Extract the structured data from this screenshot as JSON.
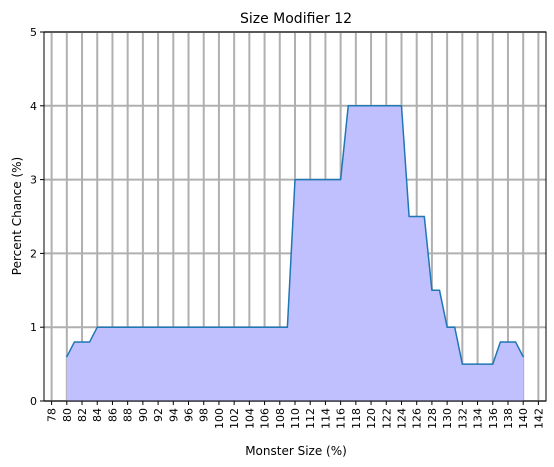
{
  "chart_data": {
    "type": "area",
    "title": "Size Modifier 12",
    "xlabel": "Monster Size (%)",
    "ylabel": "Percent Chance (%)",
    "xlim": [
      77,
      143
    ],
    "ylim": [
      0,
      5
    ],
    "grid": true,
    "x_ticks": [
      78,
      80,
      82,
      84,
      86,
      88,
      90,
      92,
      94,
      96,
      98,
      100,
      102,
      104,
      106,
      108,
      110,
      112,
      114,
      116,
      118,
      120,
      122,
      124,
      126,
      128,
      130,
      132,
      134,
      136,
      138,
      140,
      142
    ],
    "y_ticks": [
      0,
      1,
      2,
      3,
      4,
      5
    ],
    "series": [
      {
        "x": [
          80,
          81,
          82,
          83,
          84,
          85,
          86,
          87,
          88,
          89,
          90,
          91,
          92,
          93,
          94,
          95,
          96,
          97,
          98,
          99,
          100,
          101,
          102,
          103,
          104,
          105,
          106,
          107,
          108,
          109,
          110,
          111,
          112,
          113,
          114,
          115,
          116,
          117,
          118,
          119,
          120,
          121,
          122,
          123,
          124,
          125,
          126,
          127,
          128,
          129,
          130,
          131,
          132,
          133,
          134,
          135,
          136,
          137,
          138,
          139,
          140
        ],
        "values": [
          0.6,
          0.8,
          0.8,
          0.8,
          1,
          1,
          1,
          1,
          1,
          1,
          1,
          1,
          1,
          1,
          1,
          1,
          1,
          1,
          1,
          1,
          1,
          1,
          1,
          1,
          1,
          1,
          1,
          1,
          1,
          1,
          3,
          3,
          3,
          3,
          3,
          3,
          3,
          4,
          4,
          4,
          4,
          4,
          4,
          4,
          4,
          2.5,
          2.5,
          2.5,
          1.5,
          1.5,
          1,
          1,
          0.5,
          0.5,
          0.5,
          0.5,
          0.5,
          0.8,
          0.8,
          0.8,
          0.6
        ]
      }
    ],
    "colors": {
      "line": "#1f77b4",
      "fill": "#c0c0ff",
      "grid": "#b0b0b0"
    }
  }
}
